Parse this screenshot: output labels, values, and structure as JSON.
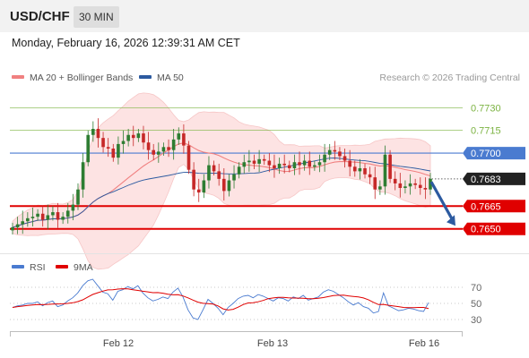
{
  "header": {
    "symbol": "USD/CHF",
    "timeframe": "30 MIN",
    "datetime": "Monday, February 16, 2026 12:39:31 AM CET"
  },
  "legend": {
    "ma20": "MA 20 + Bollinger Bands",
    "ma50": "MA 50",
    "credit": "Research © 2026 Trading Central",
    "rsi": "RSI",
    "ma9": "9MA"
  },
  "colors": {
    "resistance": "#7cb342",
    "pivot": "#4a7bd0",
    "support": "#e00000",
    "ma20": "#f08080",
    "bollinger_fill": "#fde3e3",
    "ma50": "#2c5aa0",
    "candle_up": "#2e7d32",
    "candle_down": "#c62828",
    "rsi": "#4a7bd0",
    "ma9": "#e00000",
    "last_price_tag": "#222222",
    "arrow": "#2c5aa0"
  },
  "chart_data": [
    {
      "type": "candlestick",
      "ylim": [
        0.7638,
        0.7742
      ],
      "levels": [
        {
          "label": "0.7730",
          "value": 0.773,
          "kind": "resistance"
        },
        {
          "label": "0.7715",
          "value": 0.7715,
          "kind": "resistance"
        },
        {
          "label": "0.7700",
          "value": 0.77,
          "kind": "pivot"
        },
        {
          "label": "0.7683",
          "value": 0.7683,
          "kind": "last"
        },
        {
          "label": "0.7665",
          "value": 0.7665,
          "kind": "support"
        },
        {
          "label": "0.7650",
          "value": 0.765,
          "kind": "support"
        }
      ],
      "forecast_arrow": {
        "from": 0.7681,
        "to": 0.7652
      },
      "x_ticks": [
        "Feb 12",
        "Feb 13",
        "Feb 16"
      ],
      "close": [
        0.7651,
        0.7653,
        0.7655,
        0.7657,
        0.7658,
        0.766,
        0.7656,
        0.7659,
        0.7661,
        0.7656,
        0.7658,
        0.7662,
        0.7666,
        0.7676,
        0.7694,
        0.7712,
        0.7716,
        0.771,
        0.7704,
        0.7703,
        0.7697,
        0.7706,
        0.7708,
        0.7712,
        0.771,
        0.7713,
        0.7707,
        0.7702,
        0.7699,
        0.7701,
        0.7704,
        0.7702,
        0.7709,
        0.7713,
        0.7705,
        0.7689,
        0.7676,
        0.7674,
        0.7682,
        0.7692,
        0.7688,
        0.7683,
        0.7675,
        0.7682,
        0.7686,
        0.7691,
        0.7694,
        0.7695,
        0.7693,
        0.7696,
        0.7695,
        0.7692,
        0.769,
        0.7693,
        0.7692,
        0.769,
        0.7694,
        0.7692,
        0.7695,
        0.7691,
        0.7692,
        0.7694,
        0.7699,
        0.7702,
        0.7701,
        0.7698,
        0.7695,
        0.7691,
        0.7688,
        0.769,
        0.7686,
        0.7684,
        0.7676,
        0.7678,
        0.7699,
        0.7683,
        0.768,
        0.7677,
        0.7678,
        0.768,
        0.7679,
        0.7677,
        0.7676,
        0.7683
      ],
      "rsi_ylim": [
        20,
        80
      ],
      "rsi_ticks": [
        70,
        50,
        30
      ],
      "rsi": [
        45,
        47,
        48,
        50,
        50,
        52,
        47,
        51,
        53,
        46,
        48,
        53,
        57,
        63,
        72,
        78,
        80,
        72,
        64,
        62,
        54,
        65,
        67,
        71,
        68,
        72,
        63,
        57,
        53,
        55,
        58,
        56,
        64,
        69,
        58,
        42,
        32,
        30,
        42,
        55,
        50,
        44,
        36,
        45,
        50,
        56,
        59,
        60,
        57,
        61,
        59,
        56,
        53,
        57,
        56,
        53,
        58,
        56,
        60,
        54,
        56,
        58,
        64,
        67,
        65,
        61,
        57,
        52,
        48,
        51,
        46,
        44,
        38,
        40,
        63,
        47,
        44,
        41,
        42,
        44,
        43,
        41,
        40,
        51
      ]
    }
  ]
}
